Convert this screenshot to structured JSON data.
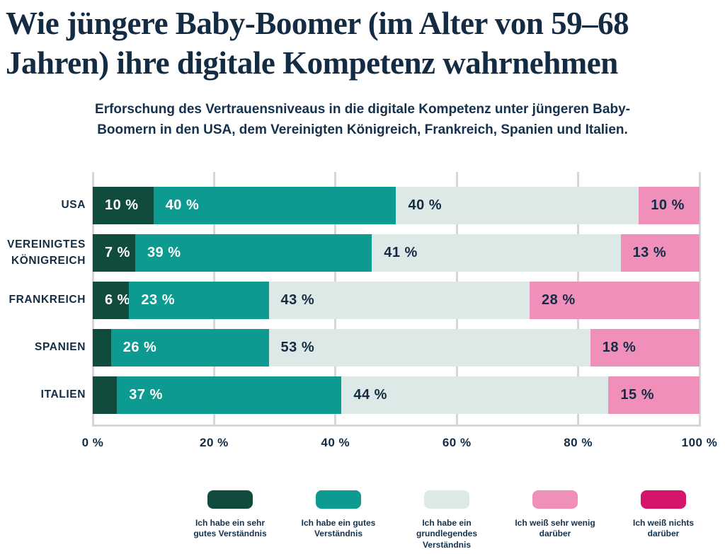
{
  "header": {
    "title": "Wie jüngere Baby-Boomer (im Alter von 59–68\nJahren) ihre digitale Kompetenz wahrnehmen",
    "subtitle": "Erforschung des Vertrauensniveaus in die digitale Kompetenz unter jüngeren Baby-\nBoomern in den USA, dem Vereinigten Königreich, Frankreich, Spanien und Italien."
  },
  "colors": {
    "ink": "#132c44",
    "background": "#ffffff",
    "gridline": "#d8d5da"
  },
  "chart_data": {
    "type": "bar",
    "stacked": true,
    "orientation": "horizontal",
    "title": "Wie jüngere Baby-Boomer (im Alter von 59–68 Jahren) ihre digitale Kompetenz wahrnehmen",
    "subtitle": "Erforschung des Vertrauensniveaus in die digitale Kompetenz unter jüngeren Baby-Boomern in den USA, dem Vereinigten Königreich, Frankreich, Spanien und Italien.",
    "categories": [
      "USA",
      "VEREINIGTES\nKÖNIGREICH",
      "FRANKREICH",
      "SPANIEN",
      "ITALIEN"
    ],
    "series": [
      {
        "name": "Ich habe ein sehr gutes Verständnis",
        "legend_label": "Ich habe ein sehr\ngutes Verständnis",
        "color": "#114b3e",
        "label_color": "#ffffff",
        "values": [
          10,
          7,
          6,
          3,
          4
        ]
      },
      {
        "name": "Ich habe ein gutes Verständnis",
        "legend_label": "Ich habe ein gutes\nVerständnis",
        "color": "#0d9a90",
        "label_color": "#ffffff",
        "values": [
          40,
          39,
          23,
          26,
          37
        ]
      },
      {
        "name": "Ich habe ein grundlegendes Verständnis",
        "legend_label": "Ich habe ein\ngrundlegendes\nVerständnis",
        "color": "#dde9e6",
        "label_color": "#132c44",
        "values": [
          40,
          41,
          43,
          53,
          44
        ]
      },
      {
        "name": "Ich weiß sehr wenig darüber",
        "legend_label": "Ich weiß sehr wenig\ndarüber",
        "color": "#ef8fba",
        "label_color": "#132c44",
        "values": [
          10,
          13,
          28,
          18,
          15
        ]
      },
      {
        "name": "Ich weiß nichts darüber",
        "legend_label": "Ich weiß nichts\ndarüber",
        "color": "#d5146b",
        "label_color": "#ffffff",
        "values": [
          0,
          0,
          0,
          0,
          0
        ]
      }
    ],
    "x_ticks": [
      "0 %",
      "20 %",
      "40 %",
      "60 %",
      "80 %",
      "100 %"
    ],
    "xlim": [
      0,
      100
    ],
    "value_suffix": " %",
    "label_min_value": 6,
    "grid": true,
    "legend_position": "bottom"
  }
}
